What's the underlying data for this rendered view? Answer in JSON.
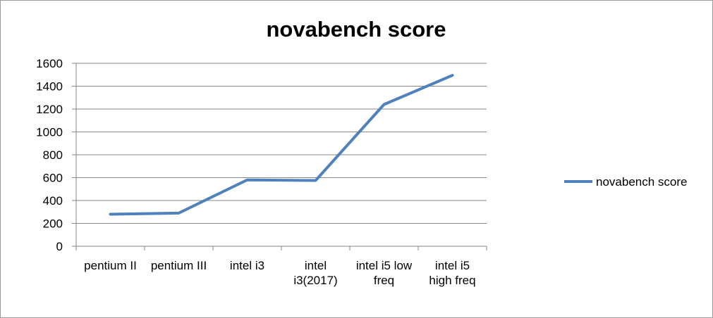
{
  "chart_data": {
    "type": "line",
    "title": "novabench score",
    "xlabel": "",
    "ylabel": "",
    "categories": [
      [
        "pentium II"
      ],
      [
        "pentium III"
      ],
      [
        "intel i3"
      ],
      [
        "intel",
        "i3(2017)"
      ],
      [
        "intel i5 low",
        "freq"
      ],
      [
        "intel i5",
        "high freq"
      ]
    ],
    "series": [
      {
        "name": "novabench score",
        "color": "#4F81BD",
        "values": [
          280,
          290,
          580,
          575,
          1240,
          1495
        ]
      }
    ],
    "ylim": [
      0,
      1600
    ],
    "yticks": [
      0,
      200,
      400,
      600,
      800,
      1000,
      1200,
      1400,
      1600
    ],
    "grid": true,
    "legend_position": "right"
  }
}
